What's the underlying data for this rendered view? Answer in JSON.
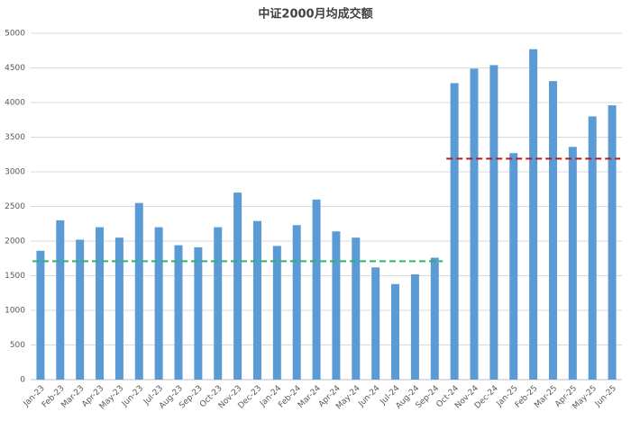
{
  "chart_data": {
    "type": "bar",
    "title": "中证2000月均成交额",
    "categories": [
      "Jan-23",
      "Feb-23",
      "Mar-23",
      "Apr-23",
      "May-23",
      "Jun-23",
      "Jul-23",
      "Aug-23",
      "Sep-23",
      "Oct-23",
      "Nov-23",
      "Dec-23",
      "Jan-24",
      "Feb-24",
      "Mar-24",
      "Apr-24",
      "May-24",
      "Jun-24",
      "Jul-24",
      "Aug-24",
      "Sep-24",
      "Oct-24",
      "Nov-24",
      "Dec-24",
      "Jan-25",
      "Feb-25",
      "Mar-25",
      "Apr-25",
      "May-25",
      "Jun-25"
    ],
    "values": [
      1860,
      2300,
      2020,
      2200,
      2050,
      2550,
      2200,
      1940,
      1910,
      2200,
      2700,
      2290,
      1930,
      2230,
      2600,
      2140,
      2050,
      1620,
      1380,
      1520,
      1760,
      4280,
      4490,
      4540,
      3270,
      4770,
      4310,
      3360,
      3800,
      3960
    ],
    "color": "#5b9bd5",
    "ylim": [
      0,
      5000
    ],
    "yticks": [
      0,
      500,
      1000,
      1500,
      2000,
      2500,
      3000,
      3500,
      4000,
      4500,
      5000
    ],
    "grid": true,
    "reference_lines": [
      {
        "value": 1710,
        "color": "#2db36b",
        "from": "Jan-23",
        "to": "Sep-24"
      },
      {
        "value": 3190,
        "color": "#c0171d",
        "from": "Oct-24",
        "to": "Jun-25"
      }
    ]
  }
}
